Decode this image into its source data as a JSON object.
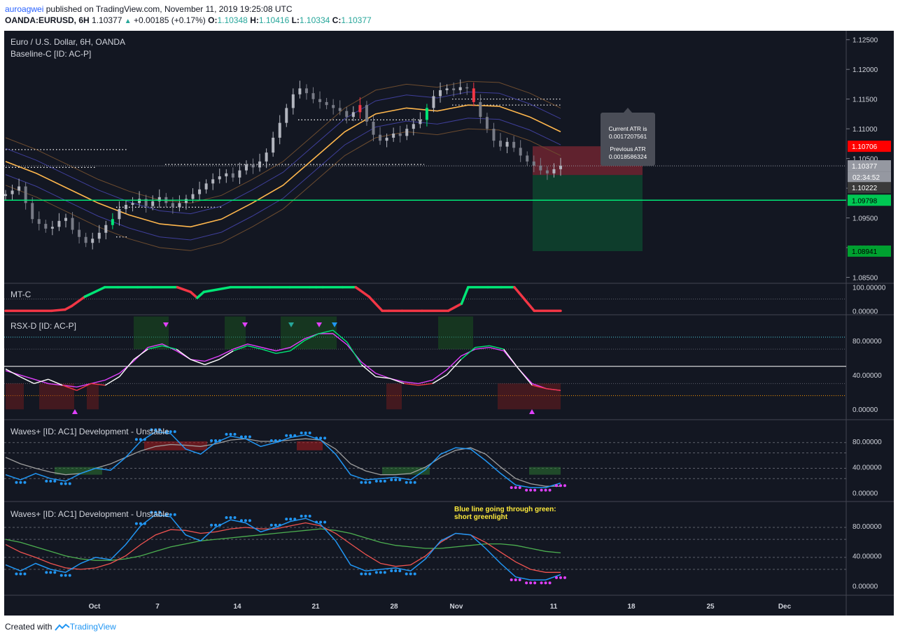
{
  "header": {
    "author": "auroagwei",
    "published": "published on TradingView.com, November 11, 2019 19:25:08 UTC",
    "symbol": "OANDA:EURUSD, 6H",
    "last": "1.10377",
    "change": "+0.00185 (+0.17%)",
    "o_label": "O:",
    "o_value": "1.10348",
    "h_label": "H:",
    "h_value": "1.10416",
    "l_label": "L:",
    "l_value": "1.10334",
    "c_label": "C:",
    "c_value": "1.10377"
  },
  "footer": {
    "created_with": "Created with",
    "brand": "TradingView"
  },
  "colors": {
    "background": "#131722",
    "up_candle": "#b2b5be",
    "down_candle": "#787b86",
    "green": "#00e676",
    "red": "#f23645",
    "orange": "#ffb74d",
    "purple": "#e040fb",
    "blue": "#2196f3",
    "white": "#ffffff",
    "teal": "#26a69a",
    "note_yellow": "#ffeb3b"
  },
  "chart_data": [
    {
      "type": "candlestick",
      "title": "Euro / U.S. Dollar, 6H, OANDA",
      "indicator": "Baseline-C [ID: AC-P]",
      "x_ticks": [
        "Oct",
        "7",
        "14",
        "21",
        "28",
        "Nov",
        "11",
        "18",
        "25",
        "Dec"
      ],
      "y_ticks": [
        "1.12500",
        "1.12000",
        "1.11500",
        "1.11000",
        "1.10500",
        "1.10000",
        "1.09500",
        "1.09000",
        "1.08500"
      ],
      "ylim": [
        1.084,
        1.1265
      ],
      "close_series": [
        1.099,
        1.0996,
        1.1003,
        1.0975,
        1.0948,
        1.094,
        1.0932,
        1.0935,
        1.0945,
        1.095,
        1.093,
        1.0918,
        1.0908,
        1.0915,
        1.0925,
        1.0938,
        1.0948,
        1.0965,
        1.0972,
        1.0975,
        1.0982,
        1.097,
        1.0978,
        1.0985,
        1.0975,
        1.0968,
        1.0975,
        1.0982,
        1.099,
        1.0998,
        1.1008,
        1.1015,
        1.102,
        1.1025,
        1.1018,
        1.103,
        1.104,
        1.1035,
        1.1045,
        1.106,
        1.1085,
        1.111,
        1.1135,
        1.1158,
        1.1168,
        1.116,
        1.115,
        1.1145,
        1.114,
        1.1135,
        1.113,
        1.112,
        1.1128,
        1.114,
        1.1112,
        1.109,
        1.108,
        1.1085,
        1.1092,
        1.1088,
        1.11,
        1.1108,
        1.1115,
        1.1135,
        1.1155,
        1.1165,
        1.1168,
        1.1165,
        1.117,
        1.1168,
        1.1145,
        1.112,
        1.11,
        1.108,
        1.107,
        1.1078,
        1.1068,
        1.1055,
        1.1045,
        1.1038,
        1.103,
        1.1025,
        1.1032,
        1.1038
      ],
      "baseline_ema": [
        1.1045,
        1.1025,
        1.1,
        1.0975,
        1.0955,
        1.094,
        1.0935,
        1.0948,
        1.0975,
        1.1005,
        1.105,
        1.1095,
        1.1125,
        1.1135,
        1.113,
        1.114,
        1.1138,
        1.112,
        1.1095
      ],
      "levels": {
        "current_price": "1.10377",
        "countdown": "02:34:52",
        "level_1": "1.10222",
        "stop_loss": "1.10706",
        "green_line": "1.09798",
        "take_profit": "1.08941"
      },
      "tooltip": {
        "current_atr_label": "Current ATR is",
        "current_atr": "0.0017207561",
        "previous_atr_label": "Previous ATR",
        "previous_atr": "0.0018586324"
      }
    },
    {
      "type": "line",
      "title": "MT-C",
      "y_ticks": [
        "100.00000",
        "0.00000"
      ],
      "ylim": [
        -5,
        105
      ],
      "x": [
        0,
        7,
        9,
        10,
        12,
        15,
        17,
        20,
        22,
        26,
        28,
        29,
        30,
        34,
        37,
        40,
        43,
        46,
        47,
        48,
        51,
        53,
        55,
        57,
        58,
        60,
        63,
        67,
        69,
        70,
        73,
        75,
        77,
        80,
        84
      ],
      "values": [
        0,
        0,
        5,
        20,
        60,
        100,
        100,
        100,
        100,
        100,
        80,
        55,
        80,
        100,
        100,
        100,
        100,
        100,
        100,
        100,
        100,
        100,
        60,
        0,
        0,
        0,
        0,
        0,
        30,
        100,
        100,
        100,
        100,
        0,
        0
      ],
      "colors_by_segment": [
        "red",
        "green",
        "red",
        "green",
        "red",
        "green",
        "red"
      ]
    },
    {
      "type": "line",
      "title": "RSX-D [ID: AC-P]",
      "y_ticks": [
        "80.00000",
        "40.00000",
        "0.00000"
      ],
      "ylim": [
        -12,
        110
      ],
      "series": [
        {
          "values": [
            47,
            38,
            30,
            35,
            28,
            22,
            30,
            28,
            38,
            58,
            70,
            74,
            70,
            58,
            52,
            58,
            68,
            74,
            70,
            65,
            68,
            80,
            88,
            92,
            78,
            52,
            38,
            36,
            30,
            28,
            30,
            40,
            58,
            72,
            74,
            70,
            48,
            28,
            24,
            22
          ]
        },
        {
          "values": [
            45,
            40,
            35,
            30,
            28,
            26,
            30,
            34,
            42,
            56,
            72,
            76,
            68,
            58,
            56,
            62,
            70,
            76,
            72,
            68,
            72,
            82,
            88,
            88,
            75,
            55,
            42,
            36,
            32,
            30,
            34,
            46,
            62,
            70,
            72,
            68,
            48,
            30,
            24,
            22
          ]
        }
      ]
    },
    {
      "type": "line",
      "title": "Waves+ [ID: AC1] Development - Unstable",
      "y_ticks": [
        "80.00000",
        "40.00000",
        "0.00000"
      ],
      "ylim": [
        -5,
        105
      ],
      "series": [
        {
          "values": [
            28,
            20,
            30,
            22,
            18,
            30,
            38,
            35,
            55,
            80,
            95,
            92,
            68,
            60,
            78,
            88,
            84,
            72,
            78,
            86,
            90,
            82,
            60,
            28,
            20,
            22,
            24,
            20,
            36,
            60,
            70,
            68,
            50,
            30,
            12,
            8,
            8,
            15
          ]
        },
        {
          "values": [
            55,
            45,
            38,
            32,
            28,
            30,
            38,
            45,
            55,
            65,
            72,
            75,
            74,
            72,
            76,
            82,
            84,
            80,
            80,
            82,
            84,
            82,
            68,
            45,
            34,
            28,
            28,
            30,
            40,
            55,
            66,
            70,
            60,
            40,
            22,
            14,
            10,
            10
          ]
        }
      ]
    },
    {
      "type": "line",
      "title": "Waves+ [ID: AC1] Development - Unstable",
      "annotation": [
        "Blue line going through green:",
        "short greenlight"
      ],
      "y_ticks": [
        "80.00000",
        "40.00000",
        "0.00000"
      ],
      "ylim": [
        -5,
        105
      ],
      "series": [
        {
          "values": [
            28,
            20,
            30,
            22,
            18,
            30,
            38,
            35,
            55,
            80,
            95,
            92,
            68,
            60,
            78,
            88,
            84,
            72,
            78,
            86,
            90,
            82,
            60,
            28,
            20,
            22,
            24,
            20,
            36,
            60,
            70,
            68,
            50,
            30,
            12,
            8,
            8,
            15
          ]
        },
        {
          "values": [
            55,
            45,
            38,
            30,
            24,
            22,
            24,
            30,
            40,
            55,
            68,
            75,
            74,
            70,
            72,
            76,
            78,
            76,
            76,
            80,
            84,
            80,
            70,
            56,
            42,
            30,
            26,
            28,
            40,
            58,
            70,
            68,
            58,
            45,
            32,
            22,
            18,
            18
          ]
        },
        {
          "values": [
            62,
            58,
            52,
            46,
            40,
            36,
            34,
            34,
            36,
            40,
            46,
            52,
            56,
            60,
            62,
            64,
            66,
            68,
            70,
            72,
            74,
            76,
            74,
            70,
            64,
            58,
            54,
            52,
            50,
            50,
            52,
            54,
            56,
            56,
            54,
            50,
            46,
            44
          ]
        }
      ]
    }
  ]
}
